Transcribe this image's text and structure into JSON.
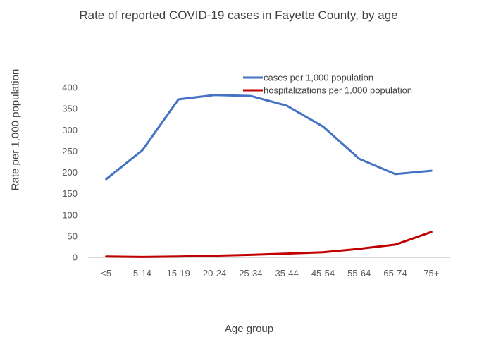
{
  "chart_data": {
    "type": "line",
    "title": "Rate of reported COVID-19 cases in Fayette County, by age",
    "xlabel": "Age group",
    "ylabel": "Rate per 1,000 population",
    "ylim": [
      0,
      400
    ],
    "yticks": [
      0,
      50,
      100,
      150,
      200,
      250,
      300,
      350,
      400
    ],
    "grid": false,
    "legend_position": "top-right",
    "categories": [
      "<5",
      "5-14",
      "15-19",
      "20-24",
      "25-34",
      "35-44",
      "45-54",
      "55-64",
      "65-74",
      "75+"
    ],
    "series": [
      {
        "name": "cases per 1,000 population",
        "color": "#4472C4",
        "values": [
          184,
          252,
          372,
          382,
          380,
          357,
          308,
          232,
          196,
          204
        ]
      },
      {
        "name": "hospitalizations per 1,000 population",
        "color": "#C00000",
        "values": [
          2,
          1,
          2,
          4,
          6,
          9,
          12,
          20,
          30,
          60
        ]
      }
    ]
  }
}
